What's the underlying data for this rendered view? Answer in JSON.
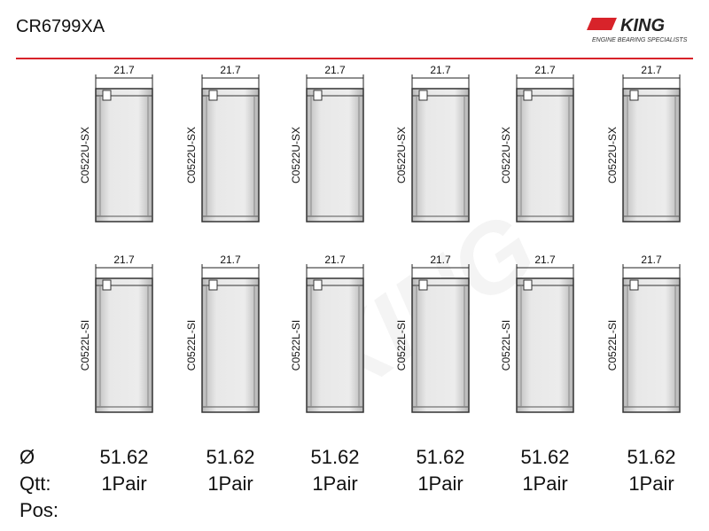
{
  "header": {
    "title": "CR6799XA",
    "logo": "KING",
    "tagline": "ENGINE BEARING SPECIALISTS"
  },
  "upper": [
    {
      "width": "21.7",
      "part": "C0522U-SX"
    },
    {
      "width": "21.7",
      "part": "C0522U-SX"
    },
    {
      "width": "21.7",
      "part": "C0522U-SX"
    },
    {
      "width": "21.7",
      "part": "C0522U-SX"
    },
    {
      "width": "21.7",
      "part": "C0522U-SX"
    },
    {
      "width": "21.7",
      "part": "C0522U-SX"
    }
  ],
  "lower": [
    {
      "width": "21.7",
      "part": "C0522L-SI"
    },
    {
      "width": "21.7",
      "part": "C0522L-SI"
    },
    {
      "width": "21.7",
      "part": "C0522L-SI"
    },
    {
      "width": "21.7",
      "part": "C0522L-SI"
    },
    {
      "width": "21.7",
      "part": "C0522L-SI"
    },
    {
      "width": "21.7",
      "part": "C0522L-SI"
    }
  ],
  "specs": {
    "diameter_label": "Ø",
    "diameters": [
      "51.62",
      "51.62",
      "51.62",
      "51.62",
      "51.62",
      "51.62"
    ],
    "qty_label": "Qtt:",
    "quantities": [
      "1Pair",
      "1Pair",
      "1Pair",
      "1Pair",
      "1Pair",
      "1Pair"
    ],
    "pos_label": "Pos:"
  }
}
